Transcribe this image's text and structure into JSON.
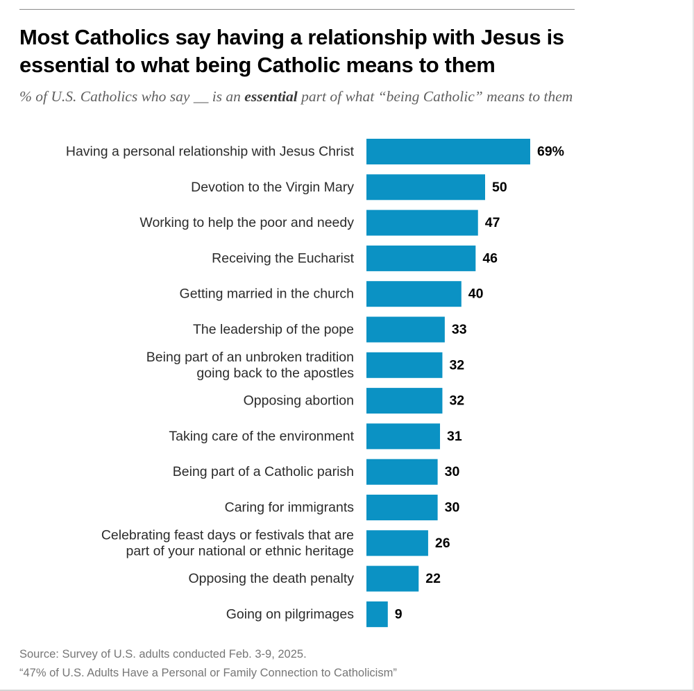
{
  "header": {
    "title": "Most Catholics say having a relationship with Jesus is essential to what being Catholic means to them",
    "subtitle_before": "% of U.S. Catholics who say __ is an ",
    "subtitle_emphasis": "essential",
    "subtitle_after": " part of what “being Catholic” means to them"
  },
  "footer": {
    "source": "Source: Survey of U.S. adults conducted Feb. 3-9, 2025.",
    "report": "“47% of U.S. Adults Have a Personal or Family Connection to Catholicism”"
  },
  "chart_data": {
    "type": "bar",
    "orientation": "horizontal",
    "bar_color": "#0b92c4",
    "categories": [
      [
        "Having a personal relationship with Jesus Christ"
      ],
      [
        "Devotion to the Virgin Mary"
      ],
      [
        "Working to help the poor and needy"
      ],
      [
        "Receiving the Eucharist"
      ],
      [
        "Getting married in the church"
      ],
      [
        "The leadership of the pope"
      ],
      [
        "Being part of an unbroken tradition",
        "going back to the apostles"
      ],
      [
        "Opposing abortion"
      ],
      [
        "Taking care of the environment"
      ],
      [
        "Being part of a Catholic parish"
      ],
      [
        "Caring for immigrants"
      ],
      [
        "Celebrating feast days or festivals that are",
        "part of your national or ethnic heritage"
      ],
      [
        "Opposing the death penalty"
      ],
      [
        "Going on pilgrimages"
      ]
    ],
    "values": [
      69,
      50,
      47,
      46,
      40,
      33,
      32,
      32,
      31,
      30,
      30,
      26,
      22,
      9
    ],
    "value_labels": [
      "69%",
      "50",
      "47",
      "46",
      "40",
      "33",
      "32",
      "32",
      "31",
      "30",
      "30",
      "26",
      "22",
      "9"
    ],
    "xlim": [
      0,
      100
    ],
    "grid": false,
    "legend": "none"
  }
}
